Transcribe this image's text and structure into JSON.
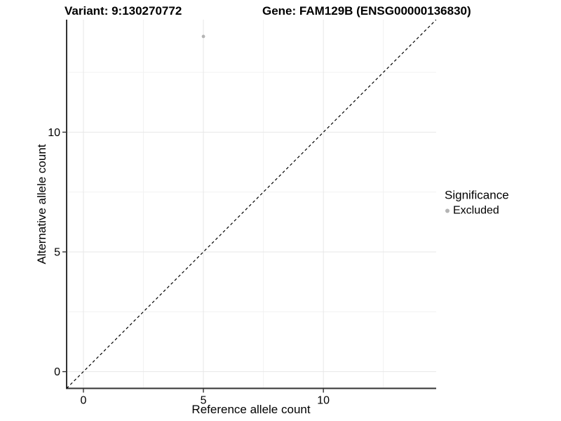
{
  "header": {
    "variant_title": "Variant: 9:130270772",
    "gene_title": "Gene: FAM129B (ENSG00000136830)"
  },
  "axes": {
    "x_label": "Reference allele count",
    "y_label": "Alternative allele count",
    "x_tick_labels": [
      "0",
      "5",
      "10"
    ],
    "y_tick_labels": [
      "0",
      "5",
      "10"
    ]
  },
  "legend": {
    "title": "Significance",
    "items": [
      {
        "label": "Excluded",
        "color": "#b4b4b4"
      }
    ]
  },
  "colors": {
    "background": "#ffffff",
    "axis_line": "#333333",
    "tick_mark": "#333333",
    "grid_major": "#e7e7e7",
    "grid_minor": "#f2f2f2",
    "point": "#b4b4b4",
    "identity_line": "#000000",
    "text": "#000000"
  },
  "chart_data": {
    "type": "scatter",
    "title": "Variant: 9:130270772   Gene: FAM129B (ENSG00000136830)",
    "xlabel": "Reference allele count",
    "ylabel": "Alternative allele count",
    "xlim": [
      -0.7,
      14.7
    ],
    "ylim": [
      -0.7,
      14.7
    ],
    "x_major_ticks": [
      0,
      5,
      10
    ],
    "y_major_ticks": [
      0,
      5,
      10
    ],
    "x_minor_ticks": [
      2.5,
      7.5,
      12.5
    ],
    "y_minor_ticks": [
      2.5,
      7.5,
      12.5
    ],
    "grid": "major+minor",
    "legend_position": "right",
    "series": [
      {
        "name": "Excluded",
        "color": "#b4b4b4",
        "points": [
          {
            "x": 5,
            "y": 14
          }
        ]
      }
    ],
    "identity_line": {
      "style": "dashed",
      "color": "#000000",
      "from": [
        -0.7,
        -0.7
      ],
      "to": [
        14.7,
        14.7
      ]
    }
  }
}
